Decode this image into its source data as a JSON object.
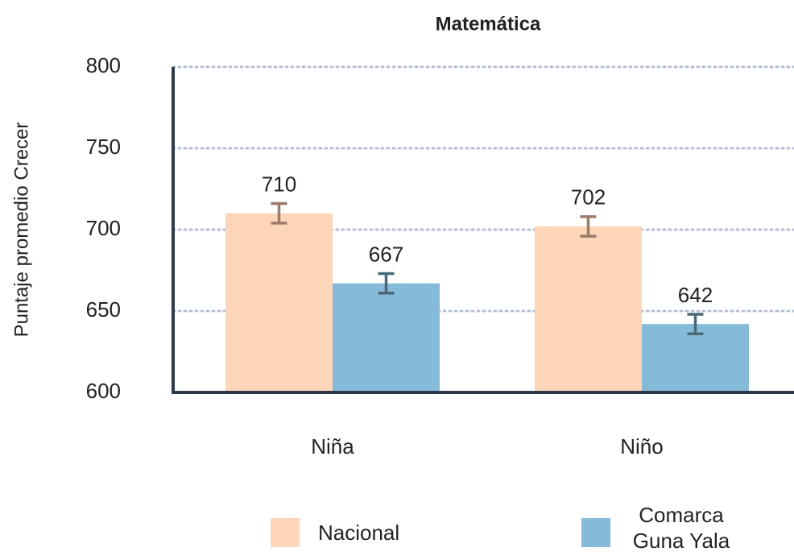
{
  "chart_data": {
    "type": "bar",
    "title": "Matemática",
    "ylabel": "Puntaje promedio Crecer",
    "categories": [
      "Niña",
      "Niño"
    ],
    "series": [
      {
        "name": "Nacional",
        "color": "#fdd5b8",
        "error_color": "#9b7b6b",
        "values": [
          710,
          702
        ],
        "errors": [
          6,
          6
        ]
      },
      {
        "name": "Comarca Guna Yala",
        "color": "#85bad8",
        "error_color": "#4a6878",
        "values": [
          667,
          642
        ],
        "errors": [
          6,
          6
        ]
      }
    ],
    "ylim": [
      600,
      800
    ],
    "yticks": [
      600,
      650,
      700,
      750,
      800
    ],
    "grid": true
  }
}
